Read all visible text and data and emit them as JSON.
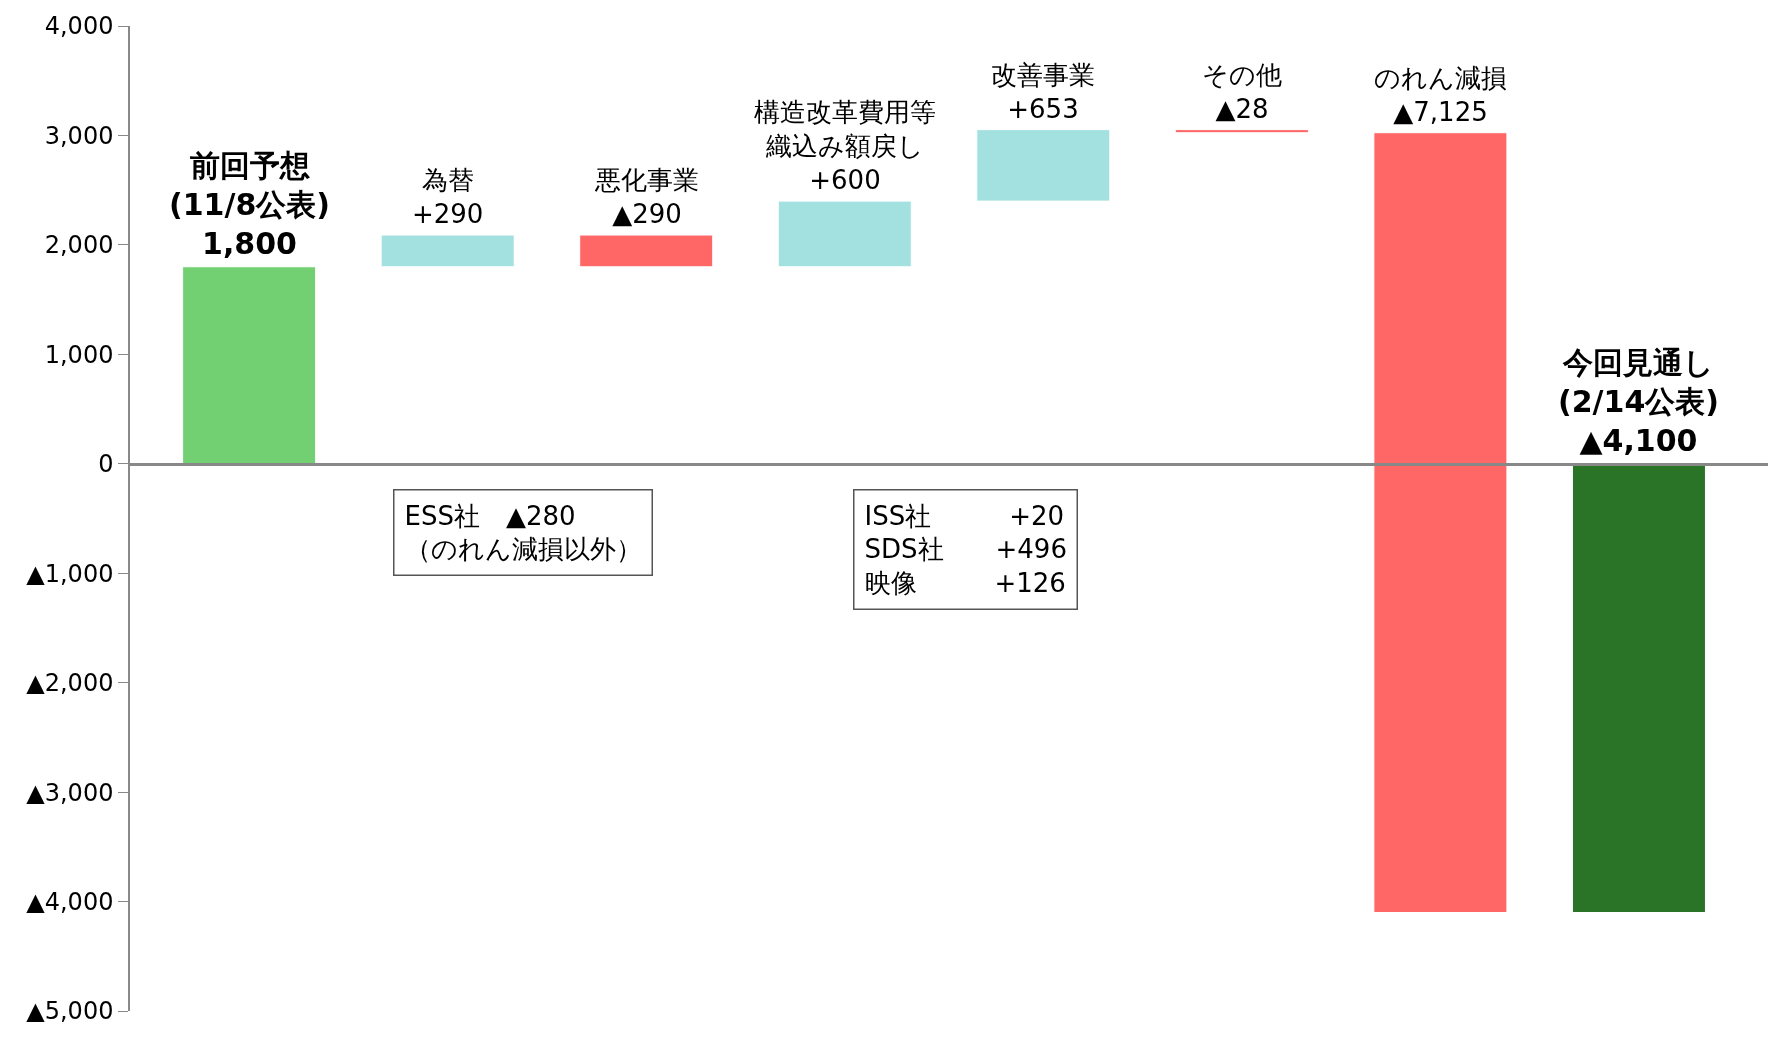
{
  "chart_data": {
    "type": "bar",
    "categories": [
      "前回予想\n(11/8公表)",
      "為替",
      "悪化事業",
      "構造改革費用等織込み額戻し",
      "改善事業",
      "その他",
      "のれん減損",
      "今回見通し\n(2/14公表)"
    ],
    "values": [
      1800,
      290,
      -290,
      600,
      653,
      -28,
      -7125,
      -4100
    ],
    "base": [
      0,
      1800,
      2090,
      1800,
      2400,
      3053,
      3025,
      0
    ],
    "value_labels": [
      "1,800",
      "+290",
      "▲290",
      "+600",
      "+653",
      "▲28",
      "▲7,125",
      "▲4,100"
    ],
    "colors": [
      "#72d072",
      "#a3e0e0",
      "#ff6666",
      "#a3e0e0",
      "#a3e0e0",
      "#ff6666",
      "#ff6666",
      "#2a7428"
    ],
    "ylim": [
      -5000,
      4000
    ],
    "yticks": [
      {
        "value": 4000,
        "label": "4,000"
      },
      {
        "value": 3000,
        "label": "3,000"
      },
      {
        "value": 2000,
        "label": "2,000"
      },
      {
        "value": 1000,
        "label": "1,000"
      },
      0,
      {
        "value": -1000,
        "label": "▲1,000"
      },
      {
        "value": -2000,
        "label": "▲2,000"
      },
      {
        "value": -3000,
        "label": "▲3,000"
      },
      {
        "value": -4000,
        "label": "▲4,000"
      },
      {
        "value": -5000,
        "label": "▲5,000"
      }
    ],
    "tick_labels": "y",
    "annotations": [
      "ESS社　▲280\n（のれん減損以外）",
      "ISS社　　　+20\nSDS社　　+496\n映像　　　+126"
    ]
  }
}
